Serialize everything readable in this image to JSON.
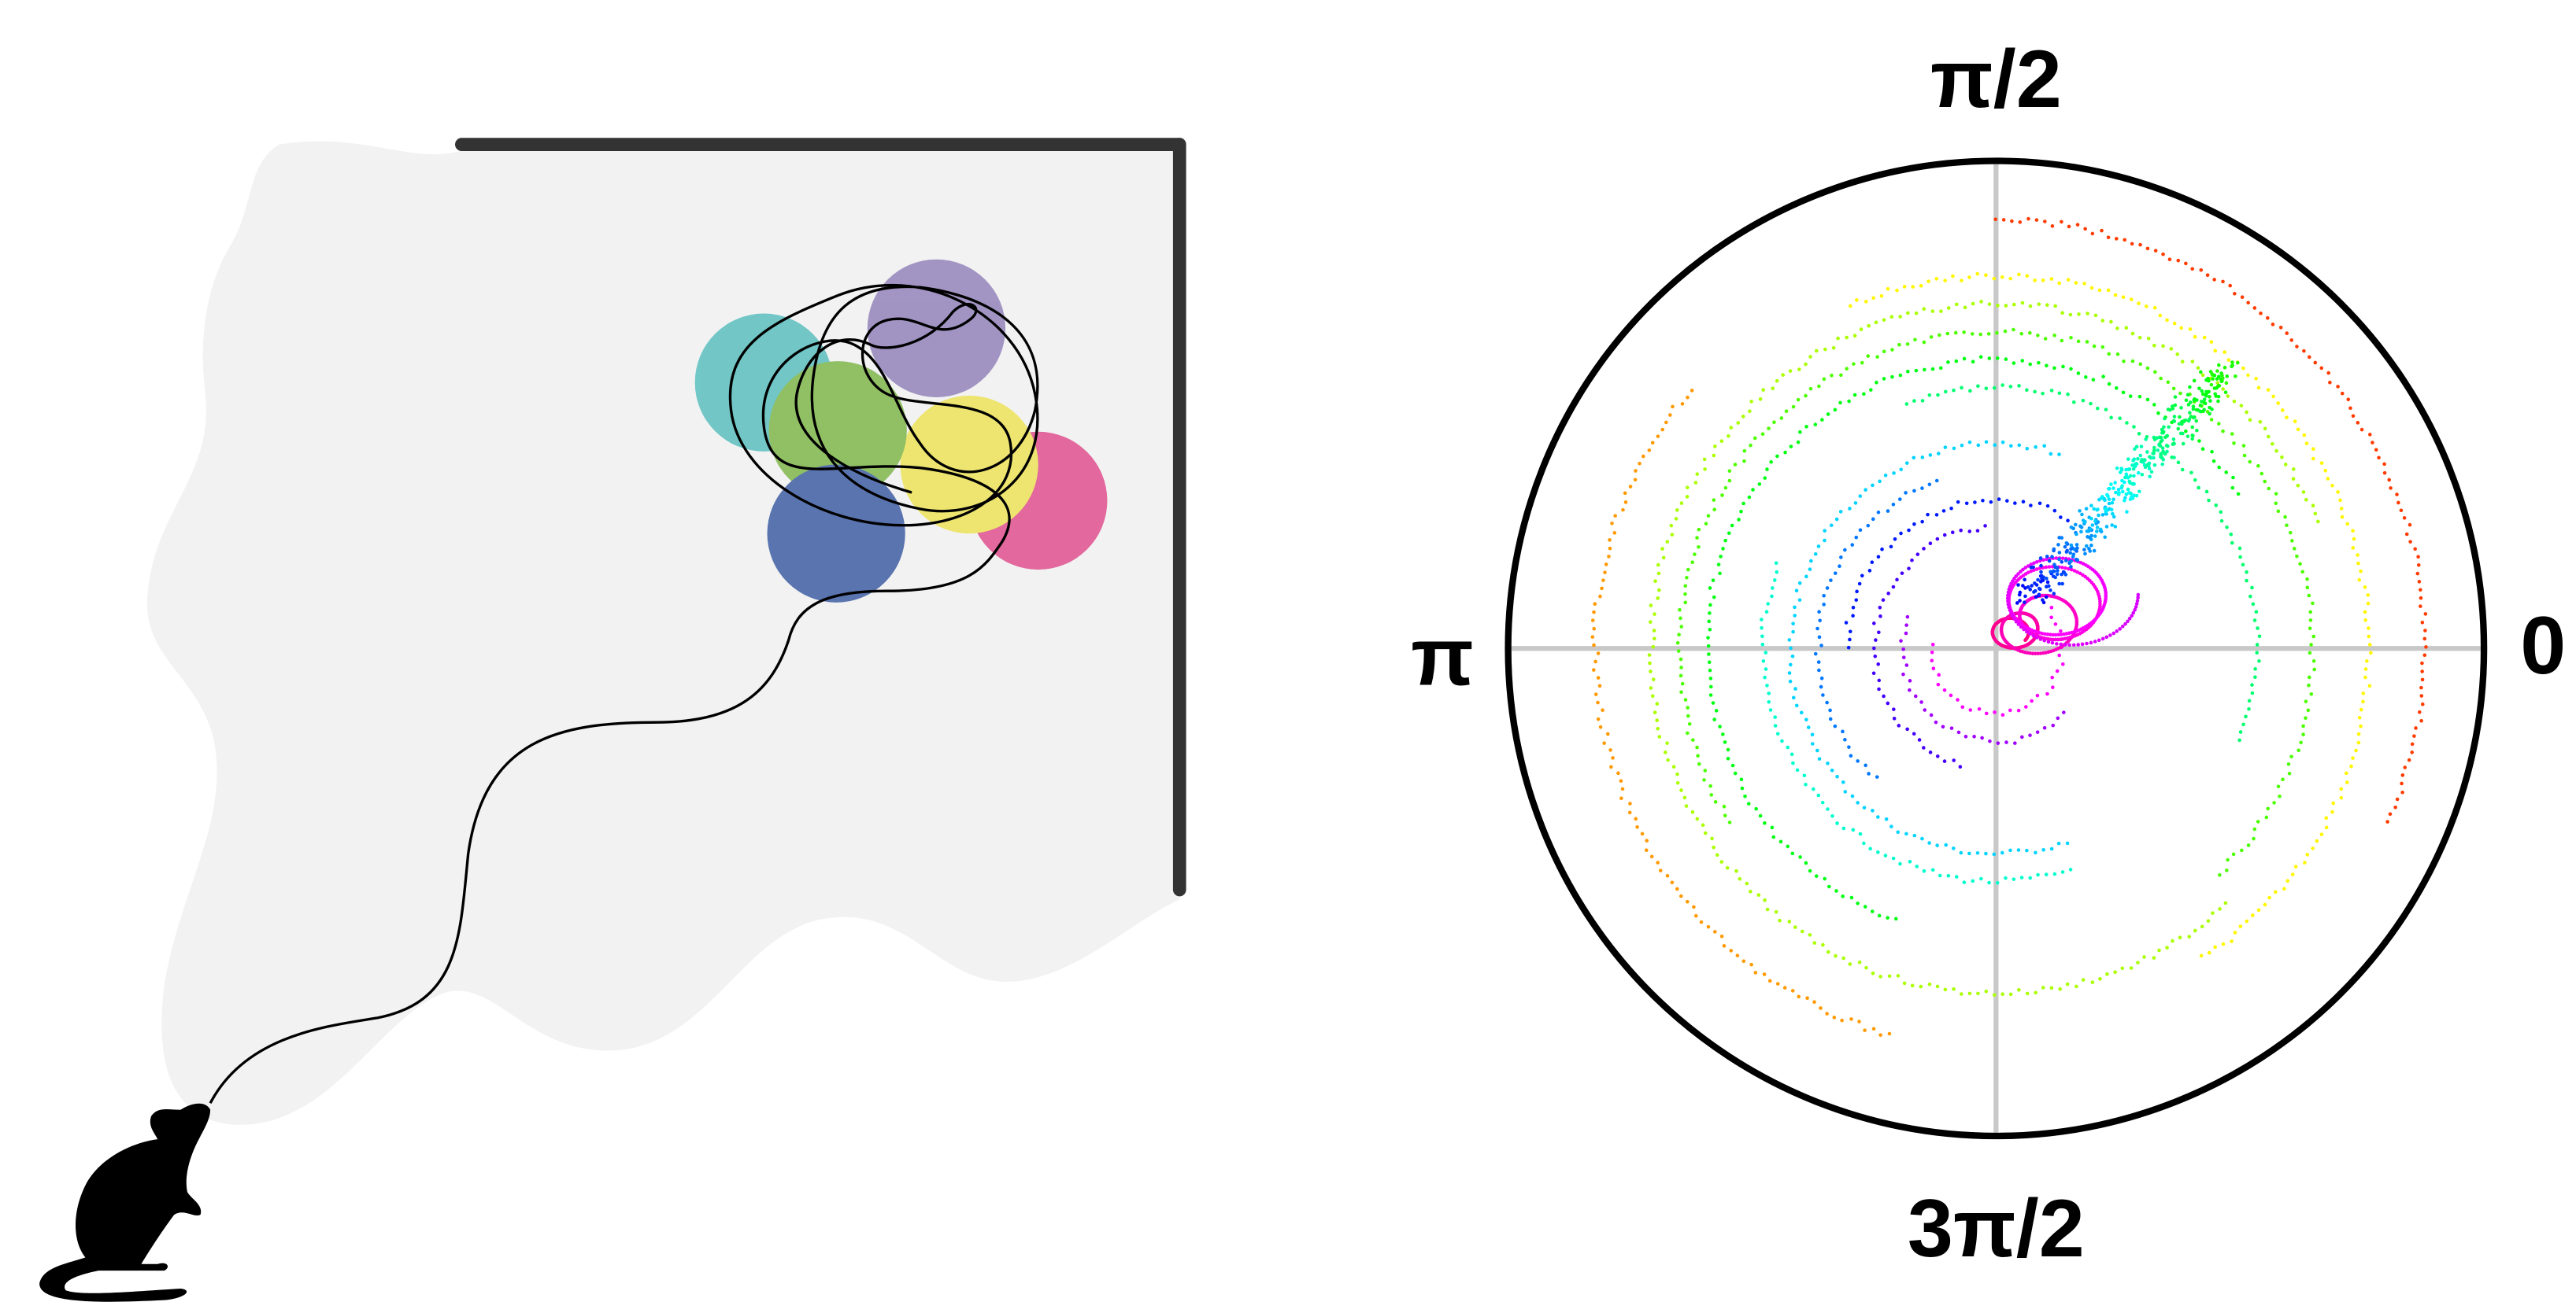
{
  "polar_labels": {
    "top": "π/2",
    "right": "0",
    "left": "π",
    "bottom": "3π/2"
  }
}
